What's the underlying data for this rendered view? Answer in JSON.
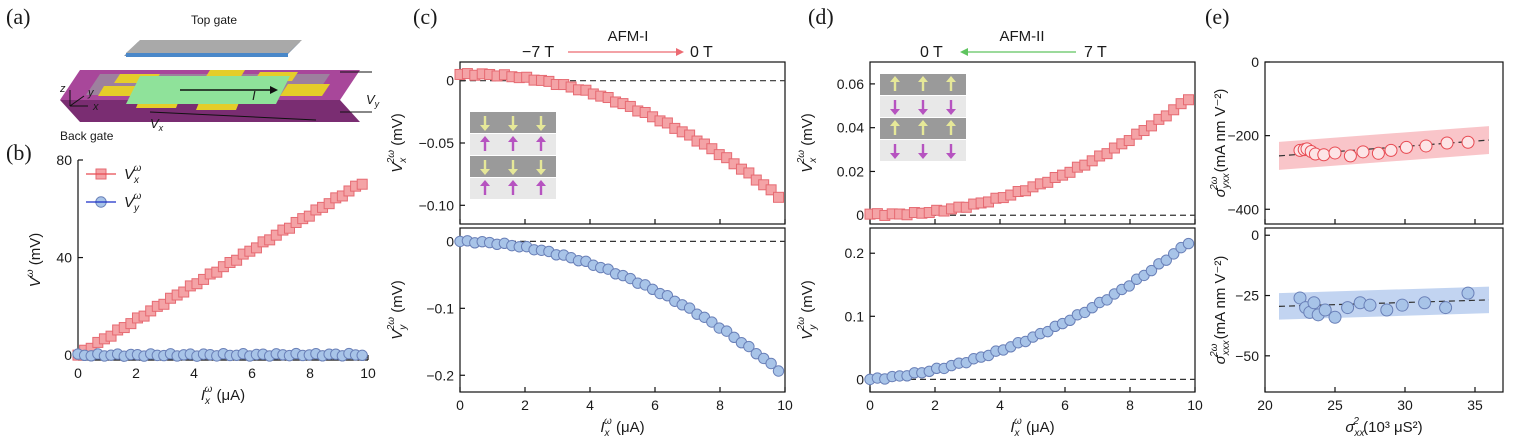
{
  "panel_labels": {
    "a": "(a)",
    "b": "(b)",
    "c": "(c)",
    "d": "(d)",
    "e": "(e)"
  },
  "device": {
    "top_gate": "Top gate",
    "back_gate": "Back gate",
    "axis_z": "z",
    "axis_y": "y",
    "axis_x": "x",
    "current": "I",
    "vx": "V",
    "vx_sub": "x",
    "vy": "V",
    "vy_sub": "y"
  },
  "colors": {
    "red_fill": "#f4a3a6",
    "red_line": "#e84a52",
    "blue_fill": "#a8c4e8",
    "blue_line": "#1a2fc6",
    "band_red": "#f7b6bb",
    "band_blue": "#b3c9ee"
  },
  "annotations": {
    "c_left": "−7 T",
    "c_right": "0 T",
    "c_label": "AFM-I",
    "d_left": "0 T",
    "d_right": "7 T",
    "d_label": "AFM-II"
  },
  "chart_data": [
    {
      "id": "b",
      "type": "scatter",
      "title": "",
      "xlabel": "I",
      "xlabel_sup": "ω",
      "xlabel_sub": "x",
      "xlabel_unit": " (μA)",
      "ylabel": "V",
      "ylabel_sup": "ω",
      "ylabel_unit": " (mV)",
      "xlim": [
        0,
        10
      ],
      "ylim": [
        -2,
        80
      ],
      "xticks": [
        0,
        2,
        4,
        6,
        8,
        10
      ],
      "yticks": [
        0,
        40,
        80
      ],
      "legend": {
        "position": "top-left",
        "entries": [
          {
            "name": "V",
            "sup": "ω",
            "sub": "x",
            "marker": "square",
            "color": "red"
          },
          {
            "name": "V",
            "sup": "ω",
            "sub": "y",
            "marker": "circle",
            "color": "blue"
          }
        ]
      },
      "series": [
        {
          "name": "Vx",
          "marker": "square",
          "color": "red",
          "fit": "linear",
          "fit_params": [
            0,
            7.2
          ],
          "n": 44,
          "x_max": 9.8
        },
        {
          "name": "Vy",
          "marker": "circle",
          "color": "blue",
          "fit": "linear",
          "fit_params": [
            0,
            0.02
          ],
          "n": 44,
          "x_max": 9.8
        }
      ]
    },
    {
      "id": "c_top",
      "type": "scatter",
      "xlim": [
        0,
        10
      ],
      "ylim": [
        -0.115,
        0.015
      ],
      "xticks": [
        0,
        2,
        4,
        6,
        8,
        10
      ],
      "yticks": [
        0,
        -0.05,
        -0.1
      ],
      "ytick_labels": [
        "0",
        "−0.05",
        "−0.10"
      ],
      "ylabel": "V",
      "ylabel_sup": "2ω",
      "ylabel_sub": "x",
      "ylabel_unit": " (mV)",
      "series": [
        {
          "marker": "square",
          "color": "red",
          "fit": "quad",
          "fit_params": [
            0.005,
            0.0008,
            -0.0011
          ],
          "n": 44,
          "x_max": 9.8
        }
      ]
    },
    {
      "id": "c_bot",
      "type": "scatter",
      "xlim": [
        0,
        10
      ],
      "ylim": [
        -0.225,
        0.02
      ],
      "xticks": [
        0,
        2,
        4,
        6,
        8,
        10
      ],
      "yticks": [
        0,
        -0.1,
        -0.2
      ],
      "ytick_labels": [
        "0",
        "−0.1",
        "−0.2"
      ],
      "ylabel": "V",
      "ylabel_sup": "2ω",
      "ylabel_sub": "y",
      "ylabel_unit": " (mV)",
      "xlabel": "I",
      "xlabel_sup": "ω",
      "xlabel_sub": "x",
      "xlabel_unit": " (μA)",
      "series": [
        {
          "marker": "circle",
          "color": "blue",
          "fit": "quad",
          "fit_params": [
            0,
            -0.0005,
            -0.00195
          ],
          "n": 44,
          "x_max": 9.8
        }
      ]
    },
    {
      "id": "d_top",
      "type": "scatter",
      "xlim": [
        0,
        10
      ],
      "ylim": [
        -0.004,
        0.07
      ],
      "xticks": [
        0,
        2,
        4,
        6,
        8,
        10
      ],
      "yticks": [
        0,
        0.02,
        0.04,
        0.06
      ],
      "ytick_labels": [
        "0",
        "0.02",
        "0.04",
        "0.06"
      ],
      "ylabel": "V",
      "ylabel_sup": "2ω",
      "ylabel_sub": "x",
      "ylabel_unit": " (mV)",
      "series": [
        {
          "marker": "square",
          "color": "red",
          "fit": "quad",
          "fit_params": [
            0.0005,
            -0.0006,
            0.00061
          ],
          "n": 44,
          "x_max": 9.8
        }
      ]
    },
    {
      "id": "d_bot",
      "type": "scatter",
      "xlim": [
        0,
        10
      ],
      "ylim": [
        -0.02,
        0.24
      ],
      "xticks": [
        0,
        2,
        4,
        6,
        8,
        10
      ],
      "yticks": [
        0,
        0.1,
        0.2
      ],
      "ytick_labels": [
        "0",
        "0.1",
        "0.2"
      ],
      "ylabel": "V",
      "ylabel_sup": "2ω",
      "ylabel_sub": "y",
      "ylabel_unit": " (mV)",
      "xlabel": "I",
      "xlabel_sup": "ω",
      "xlabel_sub": "x",
      "xlabel_unit": " (μA)",
      "series": [
        {
          "marker": "circle",
          "color": "blue",
          "fit": "quad",
          "fit_params": [
            0,
            0.004,
            0.00185
          ],
          "n": 44,
          "x_max": 9.8
        }
      ]
    },
    {
      "id": "e_top",
      "type": "scatter",
      "xlim": [
        20,
        37
      ],
      "ylim": [
        -440,
        0
      ],
      "xticks": [
        20,
        25,
        30,
        35
      ],
      "yticks": [
        0,
        -200,
        -400
      ],
      "ytick_labels": [
        "0",
        "−200",
        "−400"
      ],
      "ylabel": "σ",
      "ylabel_sup": "2ω",
      "ylabel_sub": "yxx",
      "ylabel_unit": " (mA nm V⁻²)",
      "band": [
        -235,
        38
      ],
      "fit_line": [
        [
          21,
          -255
        ],
        [
          36,
          -212
        ]
      ],
      "series": [
        {
          "marker": "circle",
          "color": "red",
          "x": [
            22.5,
            22.8,
            23.0,
            23.3,
            23.6,
            24.2,
            25.0,
            26.1,
            27.0,
            28.1,
            29.0,
            30.1,
            31.5,
            33.0,
            34.5
          ],
          "y": [
            -240,
            -238,
            -236,
            -243,
            -250,
            -252,
            -247,
            -255,
            -244,
            -248,
            -240,
            -232,
            -228,
            -220,
            -218
          ]
        }
      ]
    },
    {
      "id": "e_bot",
      "type": "scatter",
      "xlim": [
        20,
        37
      ],
      "ylim": [
        -65,
        3
      ],
      "xticks": [
        20,
        25,
        30,
        35
      ],
      "xtick_labels": [
        "20",
        "25",
        "30",
        "35"
      ],
      "yticks": [
        0,
        -25,
        -50
      ],
      "ytick_labels": [
        "0",
        "−25",
        "−50"
      ],
      "ylabel": "σ",
      "ylabel_sup": "2ω",
      "ylabel_sub": "xxx",
      "ylabel_unit": " (mA nm V⁻²)",
      "xlabel": "σ",
      "xlabel_sup": "2",
      "xlabel_sub": "xx",
      "xlabel_unit": " (10³ μS²)",
      "band": [
        -29,
        5.5
      ],
      "fit_line": [
        [
          21,
          -29.5
        ],
        [
          36,
          -26.8
        ]
      ],
      "series": [
        {
          "marker": "circle",
          "color": "blue",
          "x": [
            22.5,
            22.9,
            23.2,
            23.5,
            23.8,
            24.3,
            25.0,
            25.9,
            26.8,
            27.5,
            28.7,
            29.8,
            31.4,
            32.9,
            34.5
          ],
          "y": [
            -26,
            -30,
            -32,
            -28,
            -33,
            -31,
            -34,
            -30,
            -28,
            -29,
            -31,
            -29,
            -28,
            -30,
            -24
          ]
        }
      ]
    }
  ]
}
